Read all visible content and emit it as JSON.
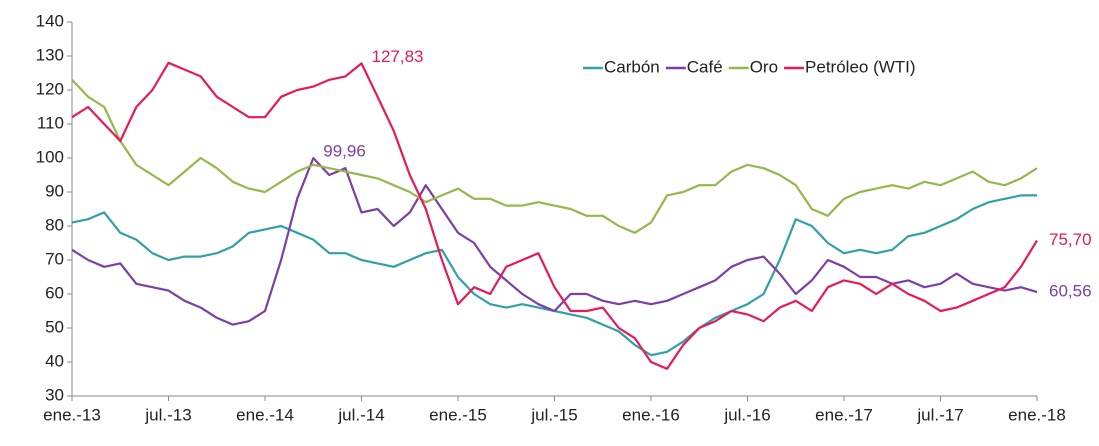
{
  "chart_data": {
    "type": "line",
    "categories": [
      "ene.-13",
      null,
      null,
      null,
      null,
      null,
      "jul.-13",
      null,
      null,
      null,
      null,
      null,
      "ene.-14",
      null,
      null,
      null,
      null,
      null,
      "jul.-14",
      null,
      null,
      null,
      null,
      null,
      "ene.-15",
      null,
      null,
      null,
      null,
      null,
      "jul.-15",
      null,
      null,
      null,
      null,
      null,
      "ene.-16",
      null,
      null,
      null,
      null,
      null,
      "jul.-16",
      null,
      null,
      null,
      null,
      null,
      "ene.-17",
      null,
      null,
      null,
      null,
      null,
      "jul.-17",
      null,
      null,
      null,
      null,
      null,
      "ene.-18"
    ],
    "series": [
      {
        "name": "Carbón",
        "color": "#31a0a8",
        "values": [
          81,
          82,
          84,
          78,
          76,
          72,
          70,
          71,
          71,
          72,
          74,
          78,
          79,
          80,
          78,
          76,
          72,
          72,
          70,
          69,
          68,
          70,
          72,
          73,
          65,
          60,
          57,
          56,
          57,
          56,
          55,
          54,
          53,
          51,
          49,
          45,
          42,
          43,
          46,
          50,
          53,
          55,
          57,
          60,
          70,
          82,
          80,
          75,
          72,
          73,
          72,
          73,
          77,
          78,
          80,
          82,
          85,
          87,
          88,
          89,
          89
        ]
      },
      {
        "name": "Café",
        "color": "#7d3fa6",
        "values": [
          73,
          70,
          68,
          69,
          63,
          62,
          61,
          58,
          56,
          53,
          51,
          52,
          55,
          70,
          88,
          99.96,
          95,
          97,
          84,
          85,
          80,
          84,
          92,
          85,
          78,
          75,
          68,
          64,
          60,
          57,
          55,
          60,
          60,
          58,
          57,
          58,
          57,
          58,
          60,
          62,
          64,
          68,
          70,
          71,
          66,
          60,
          64,
          70,
          68,
          65,
          65,
          63,
          64,
          62,
          63,
          66,
          63,
          62,
          61,
          62,
          60.56
        ],
        "value_labels": [
          null,
          null,
          null,
          null,
          null,
          null,
          null,
          null,
          null,
          null,
          null,
          null,
          null,
          null,
          null,
          "99,96",
          null,
          null,
          null,
          null,
          null,
          null,
          null,
          null,
          null,
          null,
          null,
          null,
          null,
          null,
          null,
          null,
          null,
          null,
          null,
          null,
          null,
          null,
          null,
          null,
          null,
          null,
          null,
          null,
          null,
          null,
          null,
          null,
          null,
          null,
          null,
          null,
          null,
          null,
          null,
          null,
          null,
          null,
          null,
          null,
          "60,56"
        ]
      },
      {
        "name": "Oro",
        "color": "#94b84b",
        "values": [
          123,
          118,
          115,
          105,
          98,
          95,
          92,
          96,
          100,
          97,
          93,
          91,
          90,
          93,
          96,
          98,
          97,
          96,
          95,
          94,
          92,
          90,
          87,
          89,
          91,
          88,
          88,
          86,
          86,
          87,
          86,
          85,
          83,
          83,
          80,
          78,
          81,
          89,
          90,
          92,
          92,
          96,
          98,
          97,
          95,
          92,
          85,
          83,
          88,
          90,
          91,
          92,
          91,
          93,
          92,
          94,
          96,
          93,
          92,
          94,
          97
        ]
      },
      {
        "name": "Petróleo (WTI)",
        "color": "#e8195a",
        "values": [
          112,
          115,
          110,
          105,
          115,
          120,
          128,
          126,
          124,
          118,
          115,
          112,
          112,
          118,
          120,
          121,
          123,
          124,
          127.83,
          118,
          108,
          95,
          85,
          70,
          57,
          62,
          60,
          68,
          70,
          72,
          62,
          55,
          55,
          56,
          50,
          47,
          40,
          38,
          45,
          50,
          52,
          55,
          54,
          52,
          56,
          58,
          55,
          62,
          64,
          63,
          60,
          63,
          60,
          58,
          55,
          56,
          58,
          60,
          62,
          68,
          75.7
        ],
        "value_labels": [
          null,
          null,
          null,
          null,
          null,
          null,
          null,
          null,
          null,
          null,
          null,
          null,
          null,
          null,
          null,
          null,
          null,
          null,
          "127,83",
          null,
          null,
          null,
          null,
          null,
          null,
          null,
          null,
          null,
          null,
          null,
          null,
          null,
          null,
          null,
          null,
          null,
          null,
          null,
          null,
          null,
          null,
          null,
          null,
          null,
          null,
          null,
          null,
          null,
          null,
          null,
          null,
          null,
          null,
          null,
          null,
          null,
          null,
          null,
          null,
          null,
          "75,70"
        ]
      }
    ],
    "ylim": [
      30,
      140
    ],
    "yticks": [
      30,
      40,
      50,
      60,
      70,
      80,
      90,
      100,
      110,
      120,
      130,
      140
    ],
    "legend": "top-right"
  }
}
